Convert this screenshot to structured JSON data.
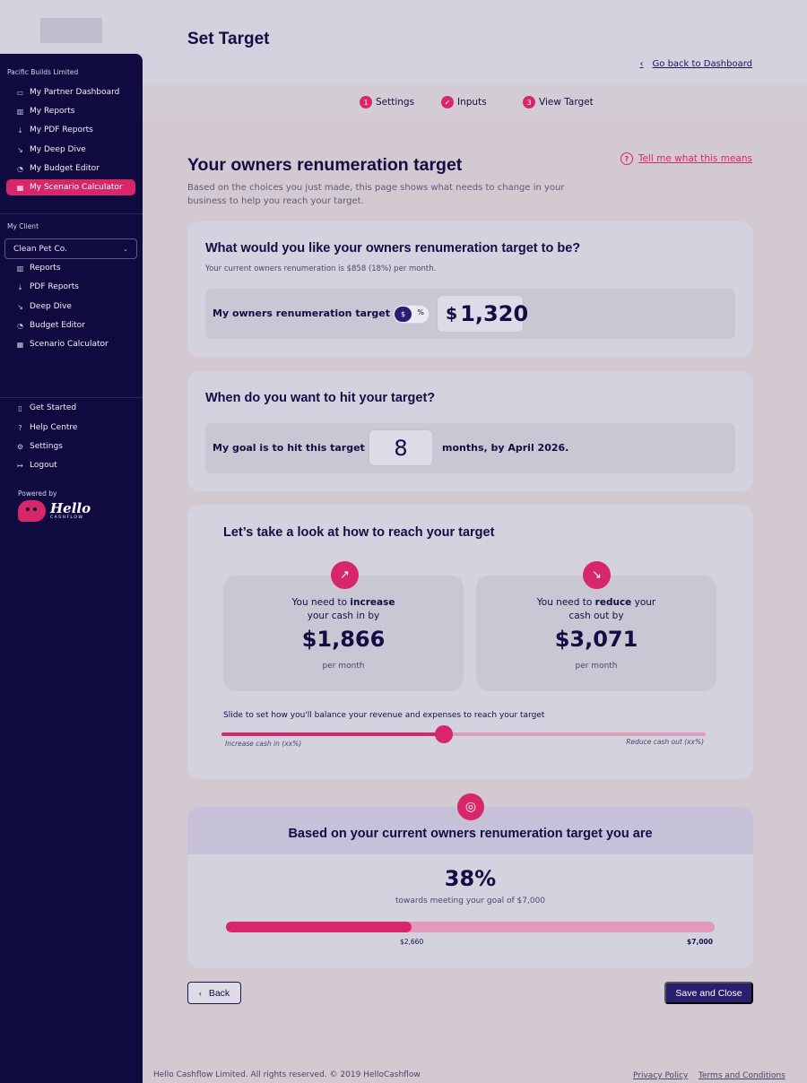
{
  "sidebar": {
    "org_name": "Pacific Builds Limited",
    "partner_items": [
      {
        "label": "My Partner Dashboard",
        "icon": "monitor-icon"
      },
      {
        "label": "My Reports",
        "icon": "bar-chart-icon"
      },
      {
        "label": "My PDF Reports",
        "icon": "download-icon"
      },
      {
        "label": "My Deep Dive",
        "icon": "trend-down-icon"
      },
      {
        "label": "My Budget Editor",
        "icon": "pie-chart-icon"
      },
      {
        "label": "My Scenario Calculator",
        "icon": "calculator-icon",
        "active": true
      }
    ],
    "client_section_label": "My Client",
    "client_selected": "Clean Pet Co.",
    "client_items": [
      {
        "label": "Reports",
        "icon": "bar-chart-icon"
      },
      {
        "label": "PDF Reports",
        "icon": "download-icon"
      },
      {
        "label": "Deep Dive",
        "icon": "trend-down-icon"
      },
      {
        "label": "Budget Editor",
        "icon": "pie-chart-icon"
      },
      {
        "label": "Scenario Calculator",
        "icon": "calculator-icon"
      }
    ],
    "bottom_items": [
      {
        "label": "Get Started",
        "icon": "book-icon"
      },
      {
        "label": "Help Centre",
        "icon": "help-icon"
      },
      {
        "label": "Settings",
        "icon": "gear-icon"
      },
      {
        "label": "Logout",
        "icon": "logout-icon"
      }
    ],
    "powered_by": "Powered by",
    "brand_word": "Hello",
    "brand_sub": "CASHFLOW"
  },
  "header": {
    "title": "Set Target",
    "back_link": "Go back to Dashboard"
  },
  "steps": [
    {
      "marker": "1",
      "label": "Settings"
    },
    {
      "marker": "✓",
      "label": "Inputs"
    },
    {
      "marker": "3",
      "label": "View Target"
    }
  ],
  "main": {
    "title": "Your owners renumeration target",
    "help_link": "Tell me what this means",
    "description": "Based on the choices you just made, this page shows what needs to change in your business to help you reach your target."
  },
  "target_card": {
    "question": "What would you like your owners renumeration target to be?",
    "current": "Your current owners renumeration is $858 (18%) per month.",
    "row_label": "My owners renumeration target is",
    "toggle_dollar": "$",
    "toggle_percent": "%",
    "currency": "$",
    "amount": "1,320"
  },
  "time_card": {
    "question": "When do you want to hit your target?",
    "row_label": "My goal is to hit this target in",
    "months": "8",
    "after": "months, by April 2026."
  },
  "reach_card": {
    "title": "Let’s take a look at how to reach your target",
    "increase": {
      "pre": "You need to ",
      "strong": "increase",
      "post": "your cash in by",
      "value": "$1,866",
      "per": "per month"
    },
    "reduce": {
      "pre": "You need to ",
      "strong": "reduce",
      "post_inline": " your",
      "post": "cash out by",
      "value": "$3,071",
      "per": "per month"
    },
    "slider_caption": "Slide to set how you'll balance your revenue and expenses to reach your target",
    "slider_left": "Increase cash in (xx%)",
    "slider_right": "Reduce cash out  (xx%)",
    "slider_value": 0.46
  },
  "result_card": {
    "title": "Based on your current owners renumeration target you are",
    "percent": "38%",
    "subtitle": "towards meeting your goal of $7,000",
    "progress": 0.38,
    "current_label": "$2,660",
    "goal_label": "$7,000"
  },
  "buttons": {
    "back": "Back",
    "save": "Save and Close"
  },
  "footer": {
    "copyright": "Hello Cashflow Limited. All rights reserved. © 2019 HelloCashflow",
    "privacy": "Privacy Policy",
    "terms": "Terms and Conditions"
  },
  "colors": {
    "accent": "#d8266a",
    "navy": "#0f0a40",
    "button": "#2a1f6e"
  }
}
